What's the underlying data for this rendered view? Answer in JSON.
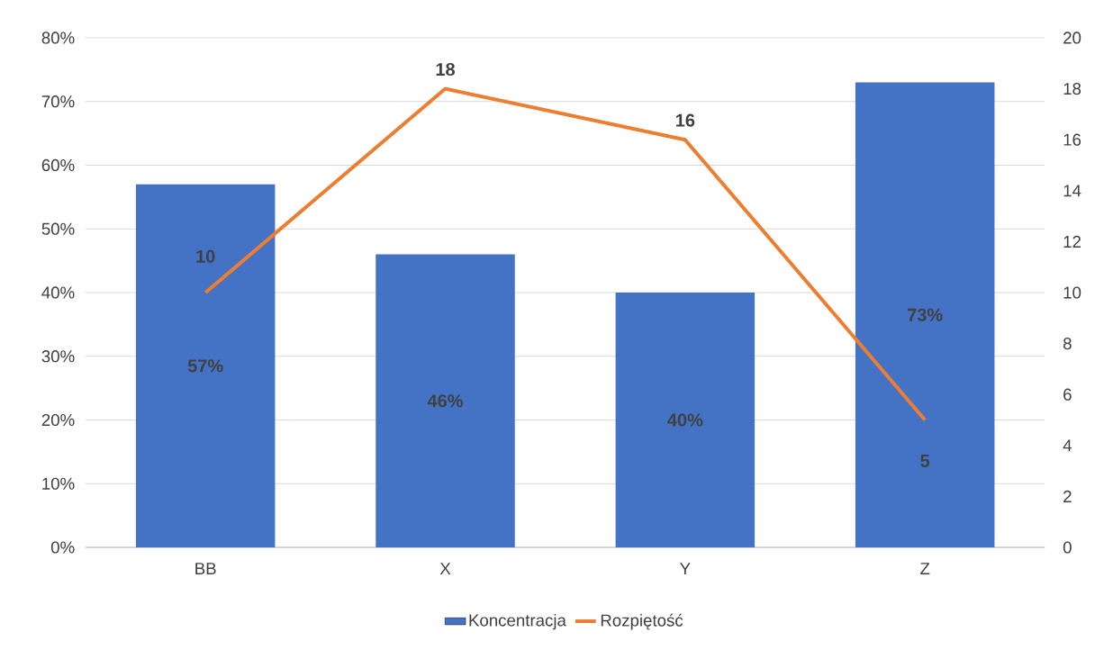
{
  "chart_data": {
    "type": "bar",
    "categories": [
      "BB",
      "X",
      "Y",
      "Z"
    ],
    "series": [
      {
        "name": "Koncentracja",
        "color": "#4472c4",
        "values": [
          57,
          46,
          40,
          73
        ],
        "value_labels": [
          "57%",
          "46%",
          "40%",
          "73%"
        ]
      },
      {
        "name": "Rozpiętość",
        "type": "line",
        "axis": "y2",
        "color": "#ed7d31",
        "values": [
          10,
          18,
          16,
          5
        ],
        "value_labels": [
          "10",
          "18",
          "16",
          "5"
        ]
      }
    ],
    "ylim": [
      0,
      80
    ],
    "yticks": [
      {
        "value": 0,
        "label": "0%"
      },
      {
        "value": 10,
        "label": "10%"
      },
      {
        "value": 20,
        "label": "20%"
      },
      {
        "value": 30,
        "label": "30%"
      },
      {
        "value": 40,
        "label": "40%"
      },
      {
        "value": 50,
        "label": "50%"
      },
      {
        "value": 60,
        "label": "60%"
      },
      {
        "value": 70,
        "label": "70%"
      },
      {
        "value": 80,
        "label": "80%"
      }
    ],
    "y2lim": [
      0,
      20
    ],
    "y2ticks": [
      0,
      2,
      4,
      6,
      8,
      10,
      12,
      14,
      16,
      18,
      20
    ],
    "grid": "y",
    "legend": "bottom"
  }
}
